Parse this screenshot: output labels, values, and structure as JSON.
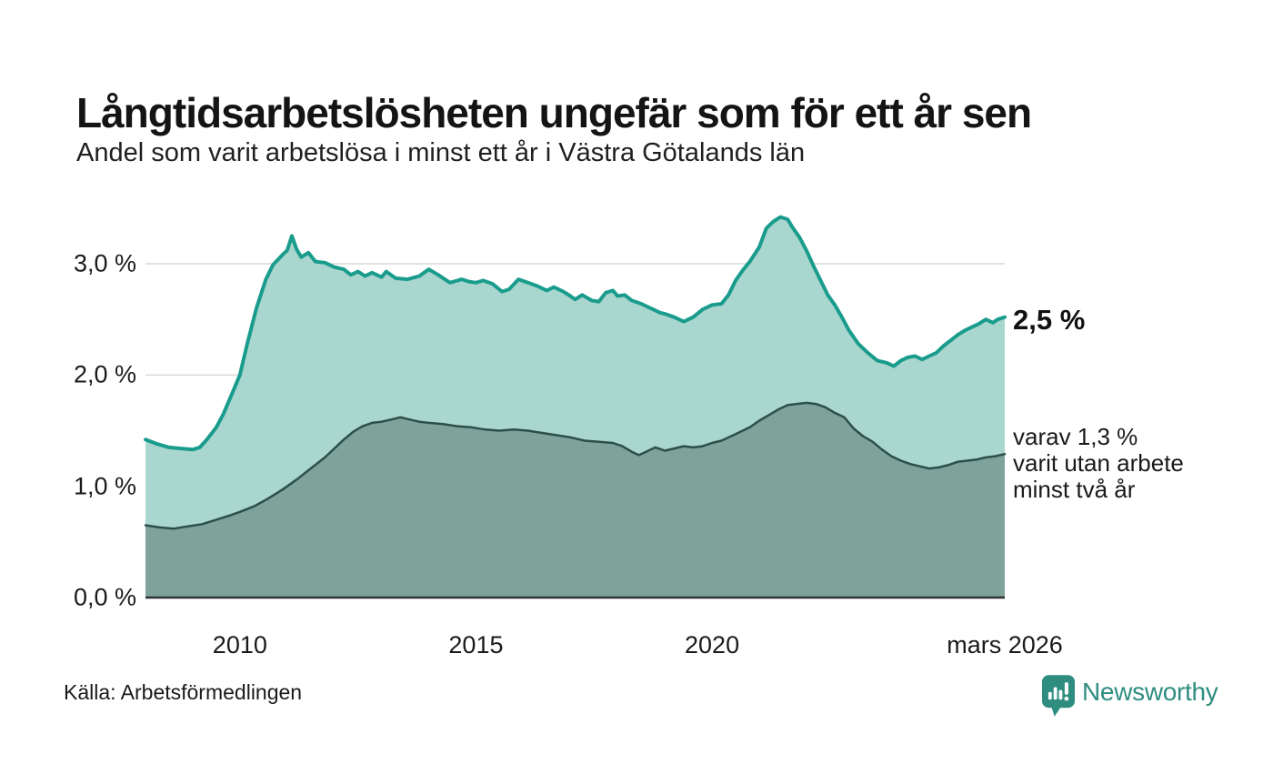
{
  "header": {
    "title": "Långtidsarbetslösheten ungefär som för ett år sen",
    "subtitle": "Andel som varit arbetslösa i minst ett år i Västra Götalands län"
  },
  "annotations": {
    "end_value": "2,5 %",
    "sub_lines": [
      "varav 1,3 %",
      "varit utan arbete",
      "minst två år"
    ]
  },
  "footer": {
    "source": "Källa: Arbetsförmedlingen",
    "brand": "Newsworthy"
  },
  "colors": {
    "series1_line": "#1a9c8c",
    "series1_fill": "#a9d6ce",
    "series2_line": "#2d4f4a",
    "series2_fill": "#7ea39b",
    "grid": "#d9d9d9",
    "axis": "#333333",
    "brand_teal": "#2f8d80"
  },
  "chart_data": {
    "type": "area",
    "title": "Långtidsarbetslösheten ungefär som för ett år sen",
    "subtitle": "Andel som varit arbetslösa i minst ett år i Västra Götalands län",
    "source": "Källa: Arbetsförmedlingen",
    "x_unit": "decimal_year",
    "x_range": [
      2008.0,
      2026.2
    ],
    "ylim": [
      0,
      3.5
    ],
    "grid": true,
    "legend_position": "end-of-line labels, right side",
    "x_axis": {
      "ticks": [
        {
          "x": 2010,
          "label": "2010"
        },
        {
          "x": 2015,
          "label": "2015"
        },
        {
          "x": 2020,
          "label": "2020"
        },
        {
          "x": 2026.2,
          "label": "mars 2026"
        }
      ]
    },
    "y_axis": {
      "ticks": [
        {
          "y": 0,
          "label": "0,0 %"
        },
        {
          "y": 1,
          "label": "1,0 %"
        },
        {
          "y": 2,
          "label": "2,0 %"
        },
        {
          "y": 3,
          "label": "3,0 %"
        }
      ]
    },
    "series": [
      {
        "name": "Andel som varit arbetslösa minst ett år",
        "end_label": "2,5 %",
        "end_value": 2.5,
        "line_color": "#1a9c8c",
        "fill_color": "#a9d6ce",
        "line_width": 4,
        "points": [
          [
            2008.0,
            1.42
          ],
          [
            2008.25,
            1.38
          ],
          [
            2008.5,
            1.35
          ],
          [
            2008.75,
            1.34
          ],
          [
            2009.0,
            1.33
          ],
          [
            2009.15,
            1.35
          ],
          [
            2009.3,
            1.42
          ],
          [
            2009.5,
            1.53
          ],
          [
            2009.65,
            1.65
          ],
          [
            2009.8,
            1.8
          ],
          [
            2010.0,
            2.0
          ],
          [
            2010.15,
            2.27
          ],
          [
            2010.35,
            2.6
          ],
          [
            2010.55,
            2.86
          ],
          [
            2010.7,
            2.99
          ],
          [
            2010.9,
            3.08
          ],
          [
            2011.0,
            3.12
          ],
          [
            2011.1,
            3.25
          ],
          [
            2011.2,
            3.13
          ],
          [
            2011.3,
            3.06
          ],
          [
            2011.45,
            3.1
          ],
          [
            2011.6,
            3.02
          ],
          [
            2011.8,
            3.01
          ],
          [
            2012.0,
            2.97
          ],
          [
            2012.2,
            2.95
          ],
          [
            2012.35,
            2.9
          ],
          [
            2012.5,
            2.93
          ],
          [
            2012.65,
            2.89
          ],
          [
            2012.8,
            2.92
          ],
          [
            2013.0,
            2.88
          ],
          [
            2013.1,
            2.93
          ],
          [
            2013.3,
            2.87
          ],
          [
            2013.55,
            2.86
          ],
          [
            2013.8,
            2.89
          ],
          [
            2014.0,
            2.95
          ],
          [
            2014.2,
            2.9
          ],
          [
            2014.45,
            2.83
          ],
          [
            2014.7,
            2.86
          ],
          [
            2014.85,
            2.84
          ],
          [
            2015.0,
            2.83
          ],
          [
            2015.15,
            2.85
          ],
          [
            2015.35,
            2.82
          ],
          [
            2015.55,
            2.75
          ],
          [
            2015.7,
            2.77
          ],
          [
            2015.9,
            2.86
          ],
          [
            2016.1,
            2.83
          ],
          [
            2016.3,
            2.8
          ],
          [
            2016.5,
            2.76
          ],
          [
            2016.65,
            2.79
          ],
          [
            2016.85,
            2.75
          ],
          [
            2017.0,
            2.71
          ],
          [
            2017.1,
            2.68
          ],
          [
            2017.25,
            2.72
          ],
          [
            2017.45,
            2.67
          ],
          [
            2017.6,
            2.66
          ],
          [
            2017.75,
            2.74
          ],
          [
            2017.9,
            2.76
          ],
          [
            2018.0,
            2.71
          ],
          [
            2018.15,
            2.72
          ],
          [
            2018.3,
            2.67
          ],
          [
            2018.5,
            2.64
          ],
          [
            2018.7,
            2.6
          ],
          [
            2018.9,
            2.56
          ],
          [
            2019.0,
            2.55
          ],
          [
            2019.2,
            2.52
          ],
          [
            2019.4,
            2.48
          ],
          [
            2019.6,
            2.52
          ],
          [
            2019.8,
            2.59
          ],
          [
            2020.0,
            2.63
          ],
          [
            2020.2,
            2.64
          ],
          [
            2020.35,
            2.72
          ],
          [
            2020.5,
            2.85
          ],
          [
            2020.65,
            2.94
          ],
          [
            2020.8,
            3.02
          ],
          [
            2021.0,
            3.15
          ],
          [
            2021.15,
            3.32
          ],
          [
            2021.3,
            3.38
          ],
          [
            2021.45,
            3.42
          ],
          [
            2021.6,
            3.4
          ],
          [
            2021.7,
            3.33
          ],
          [
            2021.85,
            3.24
          ],
          [
            2022.0,
            3.12
          ],
          [
            2022.15,
            2.98
          ],
          [
            2022.3,
            2.85
          ],
          [
            2022.45,
            2.72
          ],
          [
            2022.6,
            2.63
          ],
          [
            2022.75,
            2.52
          ],
          [
            2022.9,
            2.4
          ],
          [
            2023.1,
            2.28
          ],
          [
            2023.3,
            2.2
          ],
          [
            2023.5,
            2.13
          ],
          [
            2023.7,
            2.11
          ],
          [
            2023.85,
            2.08
          ],
          [
            2024.0,
            2.13
          ],
          [
            2024.15,
            2.16
          ],
          [
            2024.3,
            2.17
          ],
          [
            2024.45,
            2.14
          ],
          [
            2024.6,
            2.17
          ],
          [
            2024.75,
            2.2
          ],
          [
            2024.9,
            2.26
          ],
          [
            2025.05,
            2.31
          ],
          [
            2025.2,
            2.36
          ],
          [
            2025.35,
            2.4
          ],
          [
            2025.5,
            2.43
          ],
          [
            2025.65,
            2.46
          ],
          [
            2025.8,
            2.5
          ],
          [
            2025.95,
            2.47
          ],
          [
            2026.05,
            2.5
          ],
          [
            2026.2,
            2.52
          ]
        ]
      },
      {
        "name": "varav utan arbete minst två år",
        "end_label": "varav 1,3 % varit utan arbete minst två år",
        "end_value": 1.3,
        "line_color": "#2d4f4a",
        "fill_color": "#7ea39b",
        "line_width": 2.5,
        "points": [
          [
            2008.0,
            0.65
          ],
          [
            2008.3,
            0.63
          ],
          [
            2008.6,
            0.62
          ],
          [
            2008.9,
            0.64
          ],
          [
            2009.2,
            0.66
          ],
          [
            2009.5,
            0.7
          ],
          [
            2009.8,
            0.74
          ],
          [
            2010.0,
            0.77
          ],
          [
            2010.3,
            0.82
          ],
          [
            2010.6,
            0.89
          ],
          [
            2010.9,
            0.97
          ],
          [
            2011.2,
            1.06
          ],
          [
            2011.5,
            1.16
          ],
          [
            2011.8,
            1.26
          ],
          [
            2012.0,
            1.34
          ],
          [
            2012.2,
            1.42
          ],
          [
            2012.4,
            1.49
          ],
          [
            2012.6,
            1.54
          ],
          [
            2012.8,
            1.57
          ],
          [
            2013.0,
            1.58
          ],
          [
            2013.2,
            1.6
          ],
          [
            2013.4,
            1.62
          ],
          [
            2013.6,
            1.6
          ],
          [
            2013.8,
            1.58
          ],
          [
            2014.0,
            1.57
          ],
          [
            2014.3,
            1.56
          ],
          [
            2014.6,
            1.54
          ],
          [
            2014.9,
            1.53
          ],
          [
            2015.2,
            1.51
          ],
          [
            2015.5,
            1.5
          ],
          [
            2015.8,
            1.51
          ],
          [
            2016.1,
            1.5
          ],
          [
            2016.4,
            1.48
          ],
          [
            2016.7,
            1.46
          ],
          [
            2017.0,
            1.44
          ],
          [
            2017.3,
            1.41
          ],
          [
            2017.6,
            1.4
          ],
          [
            2017.9,
            1.39
          ],
          [
            2018.1,
            1.36
          ],
          [
            2018.3,
            1.31
          ],
          [
            2018.45,
            1.28
          ],
          [
            2018.6,
            1.31
          ],
          [
            2018.8,
            1.35
          ],
          [
            2019.0,
            1.32
          ],
          [
            2019.2,
            1.34
          ],
          [
            2019.4,
            1.36
          ],
          [
            2019.6,
            1.35
          ],
          [
            2019.8,
            1.36
          ],
          [
            2020.0,
            1.39
          ],
          [
            2020.2,
            1.41
          ],
          [
            2020.5,
            1.47
          ],
          [
            2020.8,
            1.53
          ],
          [
            2021.0,
            1.59
          ],
          [
            2021.2,
            1.64
          ],
          [
            2021.4,
            1.69
          ],
          [
            2021.6,
            1.73
          ],
          [
            2021.8,
            1.74
          ],
          [
            2022.0,
            1.75
          ],
          [
            2022.2,
            1.74
          ],
          [
            2022.4,
            1.71
          ],
          [
            2022.6,
            1.66
          ],
          [
            2022.8,
            1.62
          ],
          [
            2023.0,
            1.52
          ],
          [
            2023.2,
            1.45
          ],
          [
            2023.4,
            1.4
          ],
          [
            2023.6,
            1.33
          ],
          [
            2023.8,
            1.27
          ],
          [
            2024.0,
            1.23
          ],
          [
            2024.2,
            1.2
          ],
          [
            2024.4,
            1.18
          ],
          [
            2024.6,
            1.16
          ],
          [
            2024.8,
            1.17
          ],
          [
            2025.0,
            1.19
          ],
          [
            2025.2,
            1.22
          ],
          [
            2025.4,
            1.23
          ],
          [
            2025.6,
            1.24
          ],
          [
            2025.8,
            1.26
          ],
          [
            2026.0,
            1.27
          ],
          [
            2026.2,
            1.29
          ]
        ]
      }
    ]
  }
}
